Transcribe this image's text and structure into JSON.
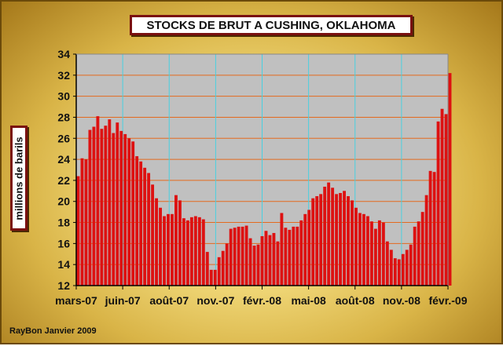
{
  "chart_data": {
    "type": "bar",
    "title": "STOCKS DE BRUT A CUSHING, OKLAHOMA",
    "ylabel": "millions de barils",
    "ylim": [
      12,
      34
    ],
    "yticks": [
      12,
      14,
      16,
      18,
      20,
      22,
      24,
      26,
      28,
      30,
      32,
      34
    ],
    "xtick_labels": [
      "mars-07",
      "juin-07",
      "août-07",
      "nov.-07",
      "févr.-08",
      "mai-08",
      "août-08",
      "nov.-08",
      "févr.-09"
    ],
    "xlim_weeks": [
      0,
      95
    ],
    "grid": true,
    "bar_color": "#dd1111",
    "plot_background": "#c0c0c0",
    "values": [
      22.4,
      24.1,
      24.0,
      26.8,
      27.1,
      28.1,
      26.9,
      27.2,
      27.8,
      26.5,
      27.5,
      26.7,
      26.4,
      26.0,
      25.7,
      24.3,
      23.8,
      23.2,
      22.7,
      21.6,
      20.3,
      19.4,
      18.6,
      18.8,
      18.8,
      20.6,
      20.1,
      18.4,
      18.2,
      18.5,
      18.6,
      18.5,
      18.3,
      15.2,
      13.5,
      13.5,
      14.7,
      15.3,
      16.0,
      17.4,
      17.5,
      17.6,
      17.6,
      17.7,
      16.5,
      15.8,
      15.9,
      16.7,
      17.2,
      16.8,
      17.0,
      16.2,
      18.9,
      17.5,
      17.3,
      17.6,
      17.6,
      18.2,
      18.8,
      19.2,
      20.3,
      20.5,
      20.7,
      21.4,
      21.8,
      21.3,
      20.7,
      20.8,
      21.0,
      20.5,
      20.1,
      19.4,
      18.9,
      18.8,
      18.6,
      18.1,
      17.4,
      18.2,
      18.0,
      16.2,
      15.4,
      14.6,
      14.5,
      15.0,
      15.4,
      15.9,
      17.6,
      18.1,
      19.0,
      20.6,
      22.9,
      22.8,
      27.6,
      28.8,
      28.3,
      32.2
    ]
  },
  "credit": "RayBon Janvier 2009"
}
